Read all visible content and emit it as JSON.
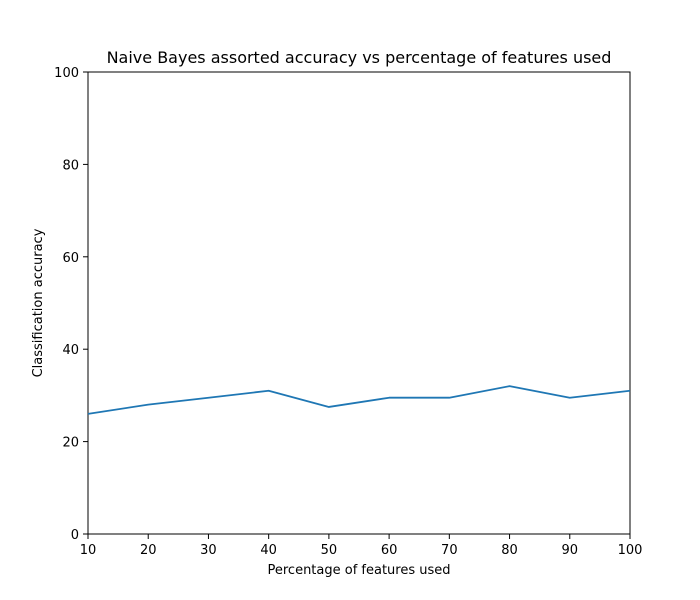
{
  "chart_data": {
    "type": "line",
    "title": "Naive Bayes assorted accuracy vs percentage of features used",
    "xlabel": "Percentage of features used",
    "ylabel": "Classification accuracy",
    "xlim": [
      10,
      100
    ],
    "ylim": [
      0,
      100
    ],
    "xticks": [
      10,
      20,
      30,
      40,
      50,
      60,
      70,
      80,
      90,
      100
    ],
    "yticks": [
      0,
      20,
      40,
      60,
      80,
      100
    ],
    "grid": false,
    "series": [
      {
        "x": [
          10,
          20,
          30,
          40,
          50,
          60,
          70,
          80,
          90,
          100
        ],
        "values": [
          26.0,
          28.0,
          29.5,
          31.0,
          27.5,
          29.5,
          29.5,
          32.0,
          29.5,
          31.0
        ],
        "color": "#1f77b4"
      }
    ]
  }
}
